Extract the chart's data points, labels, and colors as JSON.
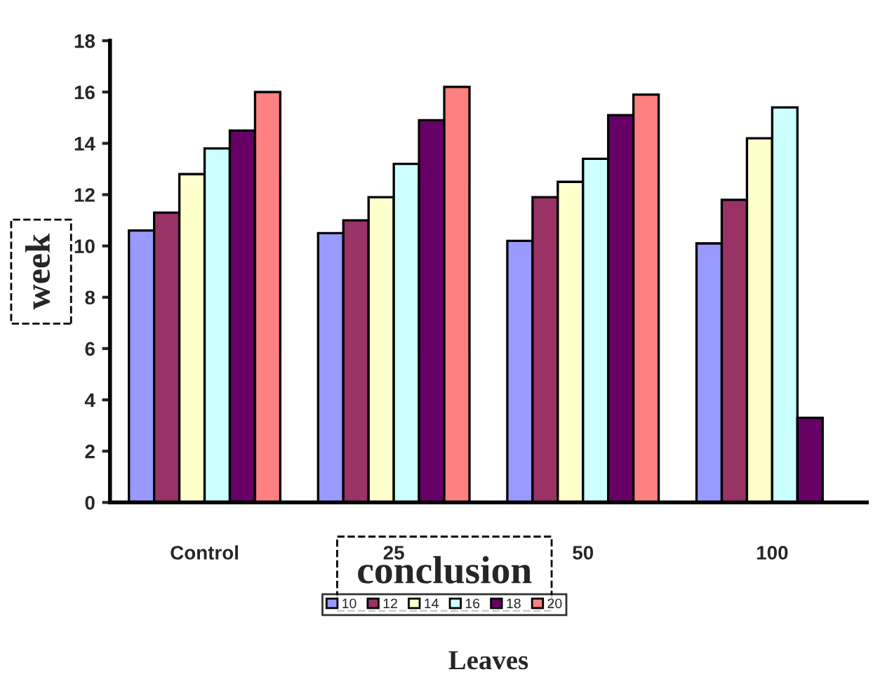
{
  "chart_data": {
    "type": "bar",
    "xlabel": "Leaves",
    "ylabel": "week",
    "categories": [
      "Control",
      "25",
      "50",
      "100"
    ],
    "series": [
      {
        "name": "10",
        "color": "#9999ff",
        "values": [
          10.6,
          10.5,
          10.2,
          10.1
        ]
      },
      {
        "name": "12",
        "color": "#993366",
        "values": [
          11.3,
          11.0,
          11.9,
          11.8
        ]
      },
      {
        "name": "14",
        "color": "#ffffcc",
        "values": [
          12.8,
          11.9,
          12.5,
          14.2
        ]
      },
      {
        "name": "16",
        "color": "#ccffff",
        "values": [
          13.8,
          13.2,
          13.4,
          15.4
        ]
      },
      {
        "name": "18",
        "color": "#660066",
        "values": [
          14.5,
          14.9,
          15.1,
          3.3
        ]
      },
      {
        "name": "20",
        "color": "#ff8080",
        "values": [
          16.0,
          16.2,
          15.9,
          null
        ]
      }
    ],
    "ylim": [
      0,
      18
    ],
    "yticks": [
      0,
      2,
      4,
      6,
      8,
      10,
      12,
      14,
      16,
      18
    ],
    "annotations": [
      "conclusion"
    ],
    "legend": "bottom",
    "grid": false
  }
}
